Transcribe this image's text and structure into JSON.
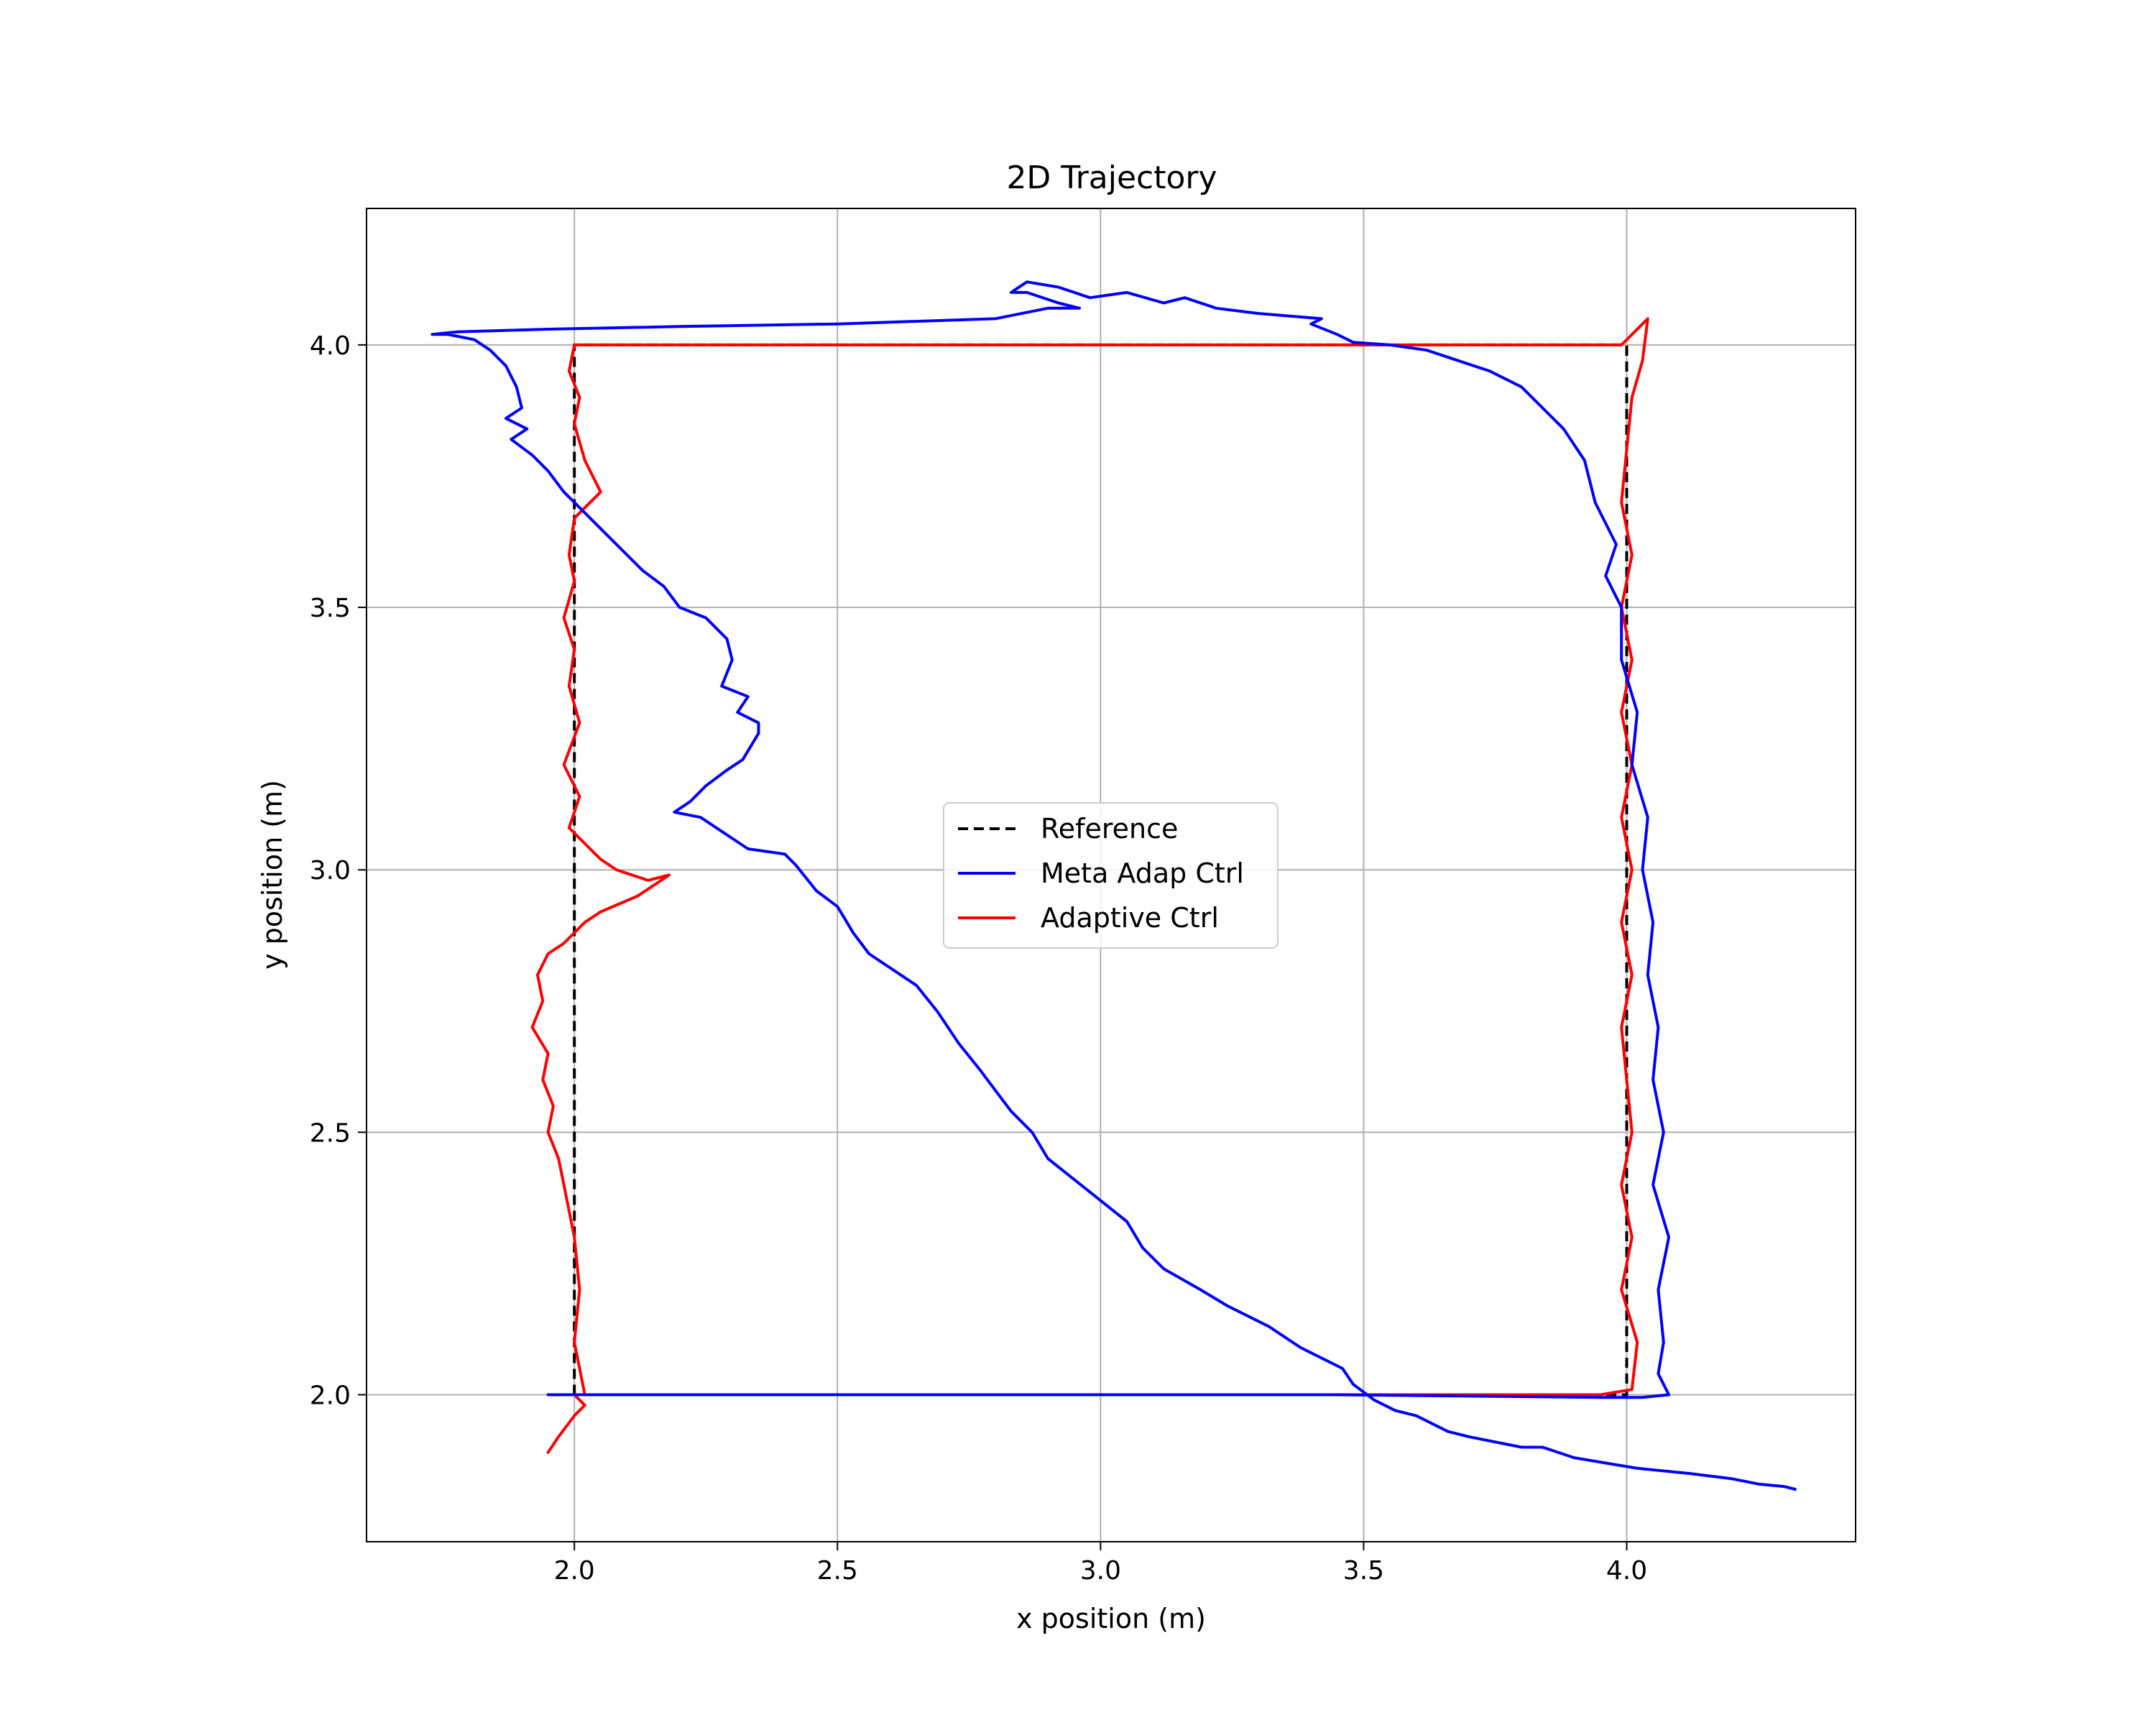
{
  "chart_data": {
    "type": "line",
    "title": "2D Trajectory",
    "xlabel": "x position (m)",
    "ylabel": "y position (m)",
    "xlim": [
      1.605,
      4.435
    ],
    "ylim": [
      1.72,
      4.26
    ],
    "xticks": [
      2.0,
      2.5,
      3.0,
      3.5,
      4.0
    ],
    "xtick_labels": [
      "2.0",
      "2.5",
      "3.0",
      "3.5",
      "4.0"
    ],
    "yticks": [
      2.0,
      2.5,
      3.0,
      3.5,
      4.0
    ],
    "ytick_labels": [
      "2.0",
      "2.5",
      "3.0",
      "3.5",
      "4.0"
    ],
    "grid": true,
    "legend_position": "center",
    "series": [
      {
        "name": "Reference",
        "color": "#000000",
        "style": "dashed",
        "x": [
          2.0,
          2.0,
          4.0,
          4.0,
          2.0
        ],
        "y": [
          2.0,
          4.0,
          4.0,
          2.0,
          2.0
        ]
      },
      {
        "name": "Meta Adap Ctrl",
        "color": "#0000ff",
        "style": "solid",
        "x": [
          1.95,
          1.99,
          2.5,
          3.0,
          3.45,
          3.95,
          4.03,
          4.08,
          4.06,
          4.07,
          4.06,
          4.08,
          4.05,
          4.07,
          4.05,
          4.06,
          4.04,
          4.05,
          4.03,
          4.04,
          4.01,
          4.02,
          3.99,
          3.99,
          3.96,
          3.98,
          3.94,
          3.92,
          3.88,
          3.84,
          3.8,
          3.74,
          3.68,
          3.62,
          3.55,
          3.48,
          3.45,
          3.4,
          3.42,
          3.3,
          3.22,
          3.16,
          3.12,
          3.05,
          2.98,
          2.92,
          2.86,
          2.83,
          2.86,
          2.92,
          2.96,
          2.9,
          2.8,
          2.5,
          2.2,
          1.95,
          1.78,
          1.73,
          1.76,
          1.81,
          1.84,
          1.87,
          1.89,
          1.9,
          1.87,
          1.91,
          1.88,
          1.92,
          1.95,
          1.98,
          2.02,
          2.06,
          2.1,
          2.13,
          2.17,
          2.2,
          2.25,
          2.29,
          2.3,
          2.28,
          2.33,
          2.31,
          2.35,
          2.35,
          2.32,
          2.29,
          2.25,
          2.22,
          2.19,
          2.24,
          2.27,
          2.33,
          2.4,
          2.42,
          2.46,
          2.5,
          2.53,
          2.56,
          2.65,
          2.69,
          2.73,
          2.77,
          2.8,
          2.83,
          2.87,
          2.9,
          2.95,
          3.0,
          3.05,
          3.08,
          3.12,
          3.19,
          3.24,
          3.32,
          3.38,
          3.46,
          3.48,
          3.52,
          3.56,
          3.6,
          3.66,
          3.7,
          3.8,
          3.84,
          3.9,
          3.96,
          4.02,
          4.12,
          4.2,
          4.25,
          4.3,
          4.32
        ],
        "y": [
          2.0,
          2.0,
          2.0,
          2.0,
          2.0,
          1.995,
          1.995,
          2.0,
          2.04,
          2.1,
          2.2,
          2.3,
          2.4,
          2.5,
          2.6,
          2.7,
          2.8,
          2.9,
          3.0,
          3.1,
          3.2,
          3.3,
          3.4,
          3.5,
          3.56,
          3.62,
          3.7,
          3.78,
          3.84,
          3.88,
          3.92,
          3.95,
          3.97,
          3.99,
          4.0,
          4.005,
          4.02,
          4.04,
          4.05,
          4.06,
          4.07,
          4.09,
          4.08,
          4.1,
          4.09,
          4.11,
          4.12,
          4.1,
          4.1,
          4.08,
          4.07,
          4.07,
          4.05,
          4.04,
          4.035,
          4.03,
          4.025,
          4.02,
          4.02,
          4.01,
          3.99,
          3.96,
          3.92,
          3.88,
          3.86,
          3.84,
          3.82,
          3.79,
          3.76,
          3.72,
          3.68,
          3.64,
          3.6,
          3.57,
          3.54,
          3.5,
          3.48,
          3.44,
          3.4,
          3.35,
          3.33,
          3.3,
          3.28,
          3.26,
          3.21,
          3.19,
          3.16,
          3.13,
          3.11,
          3.1,
          3.08,
          3.04,
          3.03,
          3.01,
          2.96,
          2.93,
          2.88,
          2.84,
          2.78,
          2.73,
          2.67,
          2.62,
          2.58,
          2.54,
          2.5,
          2.45,
          2.41,
          2.37,
          2.33,
          2.28,
          2.24,
          2.2,
          2.17,
          2.13,
          2.09,
          2.05,
          2.02,
          1.99,
          1.97,
          1.96,
          1.93,
          1.92,
          1.9,
          1.9,
          1.88,
          1.87,
          1.86,
          1.85,
          1.84,
          1.83,
          1.825,
          1.82
        ]
      },
      {
        "name": "Adaptive Ctrl",
        "color": "#ff0000",
        "style": "solid",
        "x": [
          1.95,
          1.97,
          2.0,
          2.02,
          2.01,
          2.0,
          2.5,
          3.0,
          3.5,
          3.95,
          4.01,
          4.02,
          3.99,
          4.01,
          3.99,
          4.01,
          4.0,
          3.99,
          4.01,
          3.99,
          4.01,
          3.99,
          4.01,
          3.99,
          4.01,
          3.99,
          4.01,
          3.99,
          4.0,
          4.01,
          4.03,
          4.04,
          3.99,
          3.5,
          3.0,
          2.5,
          2.0,
          1.99,
          2.01,
          2.0,
          2.02,
          2.05,
          2.0,
          1.99,
          2.0,
          1.98,
          2.0,
          1.99,
          2.01,
          1.98,
          2.01,
          1.99,
          2.02,
          2.05,
          2.08,
          2.14,
          2.18,
          2.12,
          2.05,
          2.02,
          2.0,
          1.98,
          1.95,
          1.93,
          1.94,
          1.92,
          1.95,
          1.94,
          1.96,
          1.95,
          1.97,
          1.98,
          2.0,
          2.01,
          2.0,
          2.02
        ],
        "y": [
          1.89,
          1.92,
          1.96,
          1.98,
          1.99,
          2.0,
          2.0,
          2.0,
          2.0,
          2.0,
          2.01,
          2.1,
          2.2,
          2.3,
          2.4,
          2.5,
          2.6,
          2.7,
          2.8,
          2.9,
          3.0,
          3.1,
          3.2,
          3.3,
          3.4,
          3.5,
          3.6,
          3.7,
          3.8,
          3.9,
          3.97,
          4.05,
          4.0,
          4.0,
          4.0,
          4.0,
          4.0,
          3.95,
          3.9,
          3.85,
          3.78,
          3.72,
          3.67,
          3.6,
          3.55,
          3.48,
          3.42,
          3.35,
          3.28,
          3.2,
          3.14,
          3.08,
          3.05,
          3.02,
          3.0,
          2.98,
          2.99,
          2.95,
          2.92,
          2.9,
          2.88,
          2.86,
          2.84,
          2.8,
          2.75,
          2.7,
          2.65,
          2.6,
          2.55,
          2.5,
          2.45,
          2.4,
          2.3,
          2.2,
          2.1,
          2.0
        ]
      }
    ]
  }
}
